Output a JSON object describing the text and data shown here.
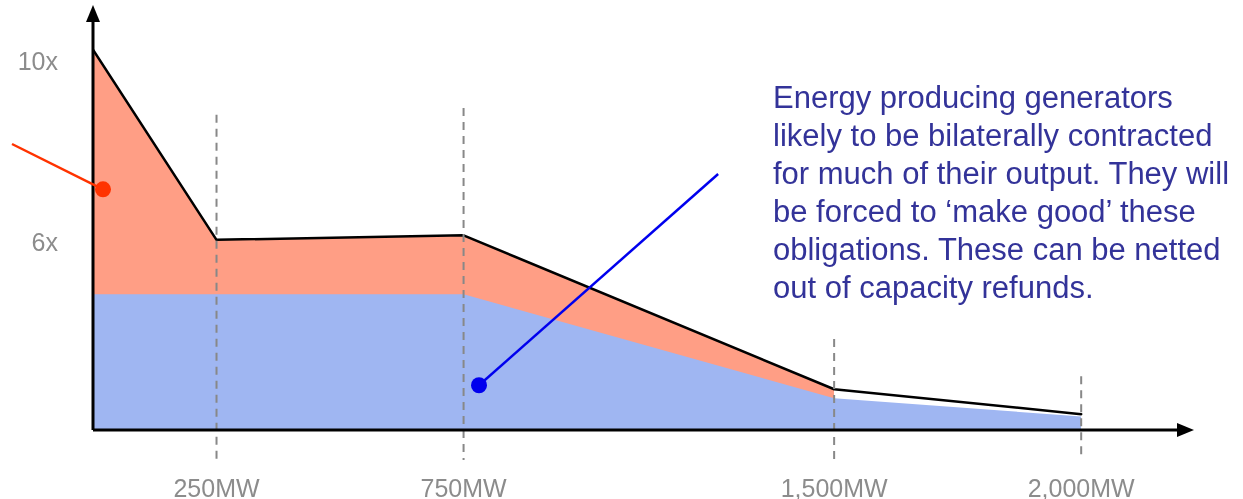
{
  "chart_data": {
    "type": "area",
    "x": [
      0,
      250,
      750,
      1500,
      2000
    ],
    "series": [
      {
        "color": "#ff9e85",
        "x": [
          0,
          250,
          750,
          1500
        ],
        "values": [
          10.3,
          6.1,
          6.2,
          2.8
        ]
      },
      {
        "color": "#9fb6f2",
        "values": [
          4.9,
          4.9,
          4.9,
          2.6,
          2.2
        ]
      },
      {
        "type": "line",
        "color": "#000000",
        "values": [
          10.3,
          6.1,
          6.2,
          2.8,
          2.25
        ]
      }
    ],
    "xlim": [
      0,
      2200
    ],
    "xticks": [
      {
        "value": 250,
        "label": "250MW"
      },
      {
        "value": 750,
        "label": "750MW"
      },
      {
        "value": 1500,
        "label": "1,500MW"
      },
      {
        "value": 2000,
        "label": "2,000MW"
      }
    ],
    "ylim": [
      1.9,
      11
    ],
    "yticks": [
      {
        "value": 6,
        "label": "6x"
      },
      {
        "value": 10,
        "label": "10x"
      }
    ],
    "ref_lines": [
      {
        "axis": "x",
        "value": 250,
        "color": "#888888",
        "line_style": "dashed"
      },
      {
        "axis": "x",
        "value": 750,
        "color": "#888888",
        "line_style": "dashed"
      },
      {
        "axis": "x",
        "value": 1500,
        "color": "#888888",
        "line_style": "dashed"
      },
      {
        "axis": "x",
        "value": 2000,
        "color": "#888888",
        "line_style": "dashed"
      }
    ],
    "annotations": [
      "Energy producing generators likely to be bilaterally contracted for much of their output. They will be forced to ‘make good’ these obligations. These can be netted out of capacity refunds."
    ],
    "grid": false,
    "legend": false,
    "marker": "none"
  }
}
